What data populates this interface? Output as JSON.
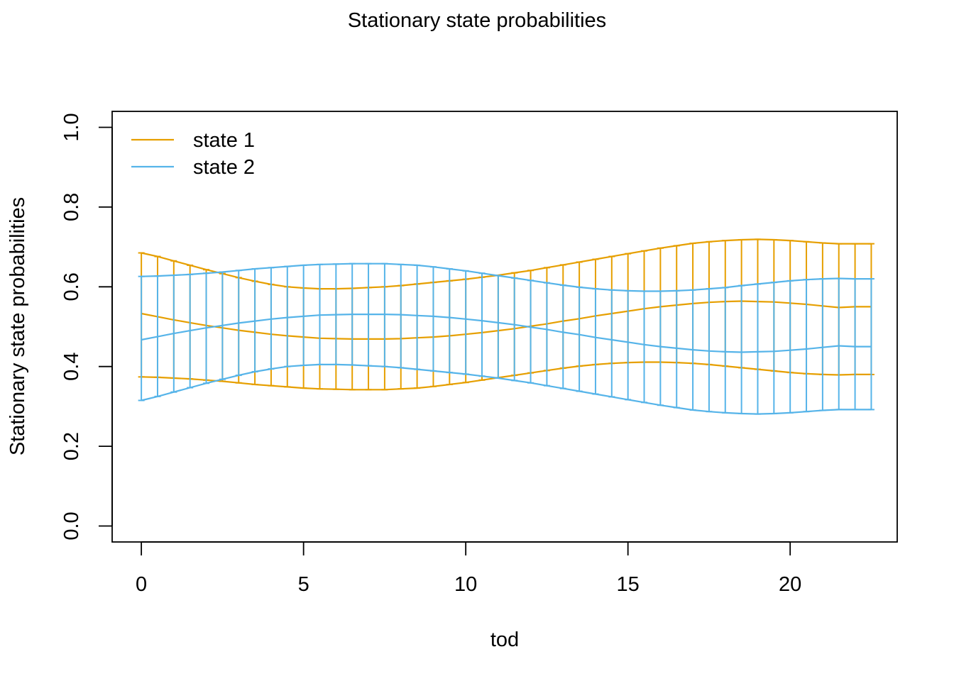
{
  "chart_data": {
    "type": "line",
    "title": "Stationary state probabilities",
    "xlabel": "tod",
    "ylabel": "Stationary state probabilities",
    "xlim": [
      -0.9,
      23.3
    ],
    "ylim": [
      -0.04,
      1.04
    ],
    "xticks": [
      0,
      5,
      10,
      15,
      20
    ],
    "yticks": [
      0.0,
      0.2,
      0.4,
      0.6,
      0.8,
      1.0
    ],
    "ytick_labels": [
      "0.0",
      "0.2",
      "0.4",
      "0.6",
      "0.8",
      "1.0"
    ],
    "legend_position": "top-left",
    "x": [
      0,
      0.5,
      1,
      1.5,
      2,
      2.5,
      3,
      3.5,
      4,
      4.5,
      5,
      5.5,
      6,
      6.5,
      7,
      7.5,
      8,
      8.5,
      9,
      9.5,
      10,
      10.5,
      11,
      11.5,
      12,
      12.5,
      13,
      13.5,
      14,
      14.5,
      15,
      15.5,
      16,
      16.5,
      17,
      17.5,
      18,
      18.5,
      19,
      19.5,
      20,
      20.5,
      21,
      21.5,
      22,
      22.5
    ],
    "series": [
      {
        "name": "state 1",
        "color": "#E69F00",
        "estimate": [
          0.533,
          0.525,
          0.517,
          0.51,
          0.503,
          0.497,
          0.491,
          0.486,
          0.481,
          0.477,
          0.474,
          0.471,
          0.47,
          0.469,
          0.469,
          0.469,
          0.47,
          0.472,
          0.474,
          0.477,
          0.481,
          0.485,
          0.49,
          0.495,
          0.501,
          0.507,
          0.514,
          0.52,
          0.527,
          0.533,
          0.539,
          0.545,
          0.55,
          0.554,
          0.558,
          0.561,
          0.563,
          0.564,
          0.563,
          0.562,
          0.559,
          0.556,
          0.552,
          0.548,
          0.55,
          0.55
        ],
        "lower": [
          0.374,
          0.373,
          0.371,
          0.369,
          0.366,
          0.363,
          0.359,
          0.355,
          0.352,
          0.349,
          0.346,
          0.344,
          0.343,
          0.342,
          0.342,
          0.342,
          0.344,
          0.346,
          0.35,
          0.355,
          0.36,
          0.366,
          0.372,
          0.378,
          0.384,
          0.39,
          0.396,
          0.401,
          0.405,
          0.408,
          0.41,
          0.411,
          0.411,
          0.41,
          0.408,
          0.405,
          0.401,
          0.397,
          0.393,
          0.389,
          0.385,
          0.382,
          0.38,
          0.379,
          0.38,
          0.38
        ],
        "upper": [
          0.685,
          0.676,
          0.665,
          0.654,
          0.643,
          0.633,
          0.623,
          0.614,
          0.606,
          0.6,
          0.597,
          0.595,
          0.595,
          0.596,
          0.598,
          0.6,
          0.603,
          0.607,
          0.611,
          0.615,
          0.619,
          0.624,
          0.629,
          0.635,
          0.641,
          0.648,
          0.655,
          0.662,
          0.669,
          0.676,
          0.683,
          0.69,
          0.697,
          0.703,
          0.709,
          0.713,
          0.716,
          0.718,
          0.719,
          0.718,
          0.716,
          0.713,
          0.71,
          0.708,
          0.708,
          0.708
        ]
      },
      {
        "name": "state 2",
        "color": "#56B4E9",
        "estimate": [
          0.467,
          0.475,
          0.483,
          0.49,
          0.497,
          0.503,
          0.509,
          0.514,
          0.519,
          0.523,
          0.526,
          0.529,
          0.53,
          0.531,
          0.531,
          0.531,
          0.53,
          0.528,
          0.526,
          0.523,
          0.519,
          0.515,
          0.51,
          0.505,
          0.499,
          0.493,
          0.486,
          0.48,
          0.473,
          0.467,
          0.461,
          0.455,
          0.45,
          0.446,
          0.442,
          0.439,
          0.437,
          0.436,
          0.437,
          0.438,
          0.441,
          0.444,
          0.448,
          0.452,
          0.45,
          0.45
        ],
        "lower": [
          0.315,
          0.325,
          0.336,
          0.347,
          0.358,
          0.368,
          0.378,
          0.387,
          0.394,
          0.4,
          0.403,
          0.405,
          0.405,
          0.404,
          0.402,
          0.4,
          0.397,
          0.393,
          0.389,
          0.385,
          0.381,
          0.376,
          0.371,
          0.365,
          0.359,
          0.352,
          0.345,
          0.338,
          0.331,
          0.324,
          0.317,
          0.31,
          0.303,
          0.297,
          0.291,
          0.287,
          0.284,
          0.282,
          0.281,
          0.282,
          0.284,
          0.287,
          0.29,
          0.292,
          0.292,
          0.292
        ],
        "upper": [
          0.626,
          0.627,
          0.629,
          0.631,
          0.634,
          0.637,
          0.641,
          0.645,
          0.648,
          0.651,
          0.654,
          0.656,
          0.657,
          0.658,
          0.658,
          0.658,
          0.656,
          0.654,
          0.65,
          0.645,
          0.64,
          0.634,
          0.628,
          0.622,
          0.616,
          0.61,
          0.604,
          0.599,
          0.595,
          0.592,
          0.59,
          0.589,
          0.589,
          0.59,
          0.592,
          0.595,
          0.598,
          0.603,
          0.607,
          0.611,
          0.615,
          0.618,
          0.62,
          0.621,
          0.62,
          0.62
        ]
      }
    ]
  }
}
